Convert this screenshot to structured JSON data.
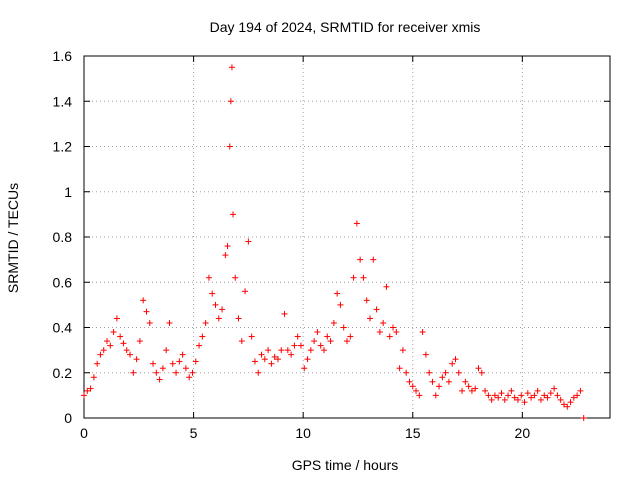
{
  "chart_data": {
    "type": "scatter",
    "title": "Day 194 of 2024, SRMTID for receiver xmis",
    "xlabel": "GPS time / hours",
    "ylabel": "SRMTID / TECUs",
    "xlim": [
      0,
      24
    ],
    "ylim": [
      0,
      1.6
    ],
    "xticks": [
      0,
      5,
      10,
      15,
      20
    ],
    "xtick_labels": [
      "0",
      "5",
      "10",
      "15",
      "20"
    ],
    "yticks": [
      0,
      0.2,
      0.4,
      0.6,
      0.8,
      1,
      1.2,
      1.4,
      1.6
    ],
    "ytick_labels": [
      "0",
      "0.2",
      "0.4",
      "0.6",
      "0.8",
      "1",
      "1.2",
      "1.4",
      "1.6"
    ],
    "grid": true,
    "marker": "+",
    "marker_color": "#ff0000",
    "series": [
      {
        "name": "SRMTID",
        "x": [
          0.0,
          0.15,
          0.3,
          0.45,
          0.6,
          0.75,
          0.9,
          1.05,
          1.2,
          1.35,
          1.5,
          1.65,
          1.8,
          1.95,
          2.1,
          2.25,
          2.4,
          2.55,
          2.7,
          2.85,
          3.0,
          3.15,
          3.3,
          3.45,
          3.6,
          3.75,
          3.9,
          4.05,
          4.2,
          4.35,
          4.5,
          4.65,
          4.8,
          4.95,
          5.1,
          5.25,
          5.4,
          5.55,
          5.7,
          5.85,
          6.0,
          6.15,
          6.3,
          6.45,
          6.55,
          6.65,
          6.7,
          6.75,
          6.8,
          6.9,
          7.05,
          7.2,
          7.35,
          7.5,
          7.65,
          7.8,
          7.95,
          8.1,
          8.25,
          8.4,
          8.55,
          8.7,
          8.85,
          9.0,
          9.15,
          9.3,
          9.45,
          9.6,
          9.75,
          9.9,
          10.05,
          10.2,
          10.35,
          10.5,
          10.65,
          10.8,
          10.95,
          11.1,
          11.25,
          11.4,
          11.55,
          11.7,
          11.85,
          12.0,
          12.15,
          12.3,
          12.45,
          12.6,
          12.75,
          12.9,
          13.05,
          13.2,
          13.35,
          13.5,
          13.65,
          13.8,
          13.95,
          14.1,
          14.25,
          14.4,
          14.55,
          14.7,
          14.85,
          15.0,
          15.15,
          15.3,
          15.45,
          15.6,
          15.75,
          15.9,
          16.05,
          16.2,
          16.35,
          16.5,
          16.65,
          16.8,
          16.95,
          17.1,
          17.25,
          17.4,
          17.55,
          17.7,
          17.85,
          18.0,
          18.15,
          18.3,
          18.45,
          18.6,
          18.75,
          18.9,
          19.05,
          19.2,
          19.35,
          19.5,
          19.65,
          19.8,
          19.95,
          20.1,
          20.25,
          20.4,
          20.55,
          20.7,
          20.85,
          21.0,
          21.15,
          21.3,
          21.45,
          21.6,
          21.75,
          21.9,
          22.05,
          22.2,
          22.35,
          22.5,
          22.65,
          22.8
        ],
        "y": [
          0.1,
          0.12,
          0.13,
          0.18,
          0.24,
          0.28,
          0.3,
          0.34,
          0.32,
          0.38,
          0.44,
          0.36,
          0.33,
          0.3,
          0.28,
          0.2,
          0.26,
          0.34,
          0.52,
          0.47,
          0.42,
          0.24,
          0.2,
          0.17,
          0.22,
          0.3,
          0.42,
          0.24,
          0.2,
          0.25,
          0.28,
          0.22,
          0.18,
          0.2,
          0.25,
          0.32,
          0.36,
          0.42,
          0.62,
          0.55,
          0.5,
          0.44,
          0.48,
          0.72,
          0.76,
          1.2,
          1.4,
          1.55,
          0.9,
          0.62,
          0.44,
          0.34,
          0.56,
          0.78,
          0.36,
          0.25,
          0.2,
          0.28,
          0.26,
          0.3,
          0.24,
          0.27,
          0.26,
          0.3,
          0.46,
          0.3,
          0.28,
          0.32,
          0.36,
          0.32,
          0.22,
          0.26,
          0.3,
          0.34,
          0.38,
          0.32,
          0.3,
          0.36,
          0.34,
          0.42,
          0.55,
          0.5,
          0.4,
          0.34,
          0.36,
          0.62,
          0.86,
          0.7,
          0.62,
          0.52,
          0.44,
          0.7,
          0.48,
          0.38,
          0.42,
          0.58,
          0.36,
          0.4,
          0.38,
          0.22,
          0.3,
          0.2,
          0.16,
          0.14,
          0.12,
          0.1,
          0.38,
          0.28,
          0.2,
          0.16,
          0.1,
          0.14,
          0.18,
          0.2,
          0.16,
          0.24,
          0.26,
          0.2,
          0.12,
          0.16,
          0.14,
          0.12,
          0.13,
          0.22,
          0.2,
          0.12,
          0.1,
          0.08,
          0.1,
          0.09,
          0.11,
          0.08,
          0.1,
          0.12,
          0.09,
          0.08,
          0.1,
          0.07,
          0.11,
          0.09,
          0.1,
          0.12,
          0.08,
          0.1,
          0.09,
          0.11,
          0.13,
          0.1,
          0.08,
          0.06,
          0.05,
          0.07,
          0.09,
          0.1,
          0.12,
          0.0
        ]
      }
    ]
  }
}
